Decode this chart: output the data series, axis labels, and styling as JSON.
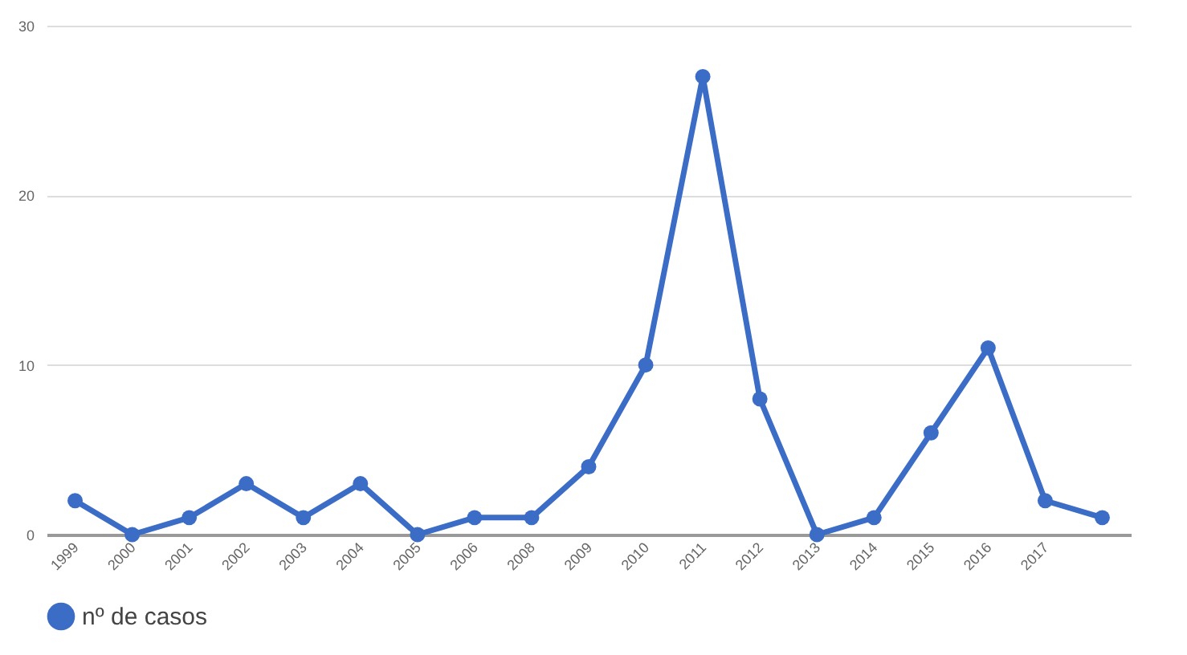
{
  "chart_data": {
    "type": "line",
    "categories": [
      "1999",
      "2000",
      "2001",
      "2002",
      "2003",
      "2004",
      "2005",
      "2006",
      "2008",
      "2009",
      "2010",
      "2011",
      "2012",
      "2013",
      "2014",
      "2015",
      "2016",
      "2017",
      null
    ],
    "series": [
      {
        "name": "nº de casos",
        "color": "#3b6cc6",
        "values": [
          2,
          0,
          1,
          3,
          1,
          3,
          0,
          1,
          1,
          4,
          10,
          27,
          8,
          0,
          1,
          6,
          11,
          2,
          1
        ]
      }
    ],
    "ylim": [
      0,
      30
    ],
    "yticks": [
      0,
      10,
      20,
      30
    ],
    "grid": "y",
    "legend": "bottom",
    "marker": "circle",
    "line_style": "solid"
  }
}
